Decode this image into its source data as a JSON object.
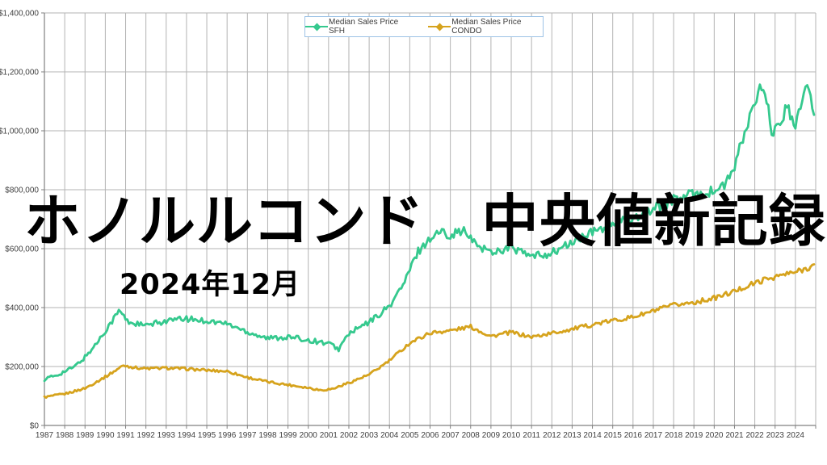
{
  "overlay": {
    "headline": "ホノルルコンド　中央値新記録",
    "subtitle": "2024年12月"
  },
  "legend": {
    "entries": [
      {
        "label": "Median Sales Price SFH",
        "color": "#35c98e"
      },
      {
        "label": "Median Sales Price CONDO",
        "color": "#d6a31d"
      }
    ]
  },
  "colors": {
    "sfh_line": "#35c98e",
    "condo_line": "#d6a31d",
    "gridline": "#b3b3b3",
    "axis": "#808080",
    "tick_text": "#404040",
    "legend_border": "#9dc3e6",
    "overlay_text": "#000000"
  },
  "chart_data": {
    "type": "line",
    "title": "",
    "xlabel": "",
    "ylabel": "",
    "grid": true,
    "legend_position": "top-center",
    "x_axis": {
      "range": [
        1987,
        2025
      ],
      "labels": [
        "1987",
        "1988",
        "1989",
        "1990",
        "1991",
        "1992",
        "1993",
        "1994",
        "1995",
        "1996",
        "1997",
        "1998",
        "1999",
        "2000",
        "2001",
        "2002",
        "2003",
        "2004",
        "2005",
        "2006",
        "2007",
        "2008",
        "2009",
        "2010",
        "2011",
        "2012",
        "2013",
        "2014",
        "2015",
        "2016",
        "2017",
        "2018",
        "2019",
        "2020",
        "2021",
        "2022",
        "2023",
        "2024"
      ]
    },
    "y_axis": {
      "range": [
        0,
        1400000
      ],
      "step": 200000,
      "tick_labels": [
        "$0",
        "$200,000",
        "$400,000",
        "$600,000",
        "$800,000",
        "$1,000,000",
        "$1,200,000",
        "$1,400,000"
      ]
    },
    "series": [
      {
        "name": "Median Sales Price SFH",
        "color": "#35c98e",
        "unit": "USD",
        "sampling": "monthly (values below are key anchor points read from plot)",
        "points": [
          [
            1987.0,
            157000
          ],
          [
            1987.5,
            168000
          ],
          [
            1988.0,
            183000
          ],
          [
            1988.5,
            200000
          ],
          [
            1989.0,
            232000
          ],
          [
            1989.5,
            272000
          ],
          [
            1990.0,
            322000
          ],
          [
            1990.7,
            391000
          ],
          [
            1991.1,
            352000
          ],
          [
            1992.0,
            338000
          ],
          [
            1993.0,
            355000
          ],
          [
            1994.0,
            362000
          ],
          [
            1995.0,
            355000
          ],
          [
            1996.0,
            345000
          ],
          [
            1997.0,
            318000
          ],
          [
            1998.0,
            296000
          ],
          [
            1999.0,
            300000
          ],
          [
            2000.0,
            290000
          ],
          [
            2001.0,
            278000
          ],
          [
            2001.5,
            259000
          ],
          [
            2002.0,
            312000
          ],
          [
            2003.0,
            350000
          ],
          [
            2004.0,
            405000
          ],
          [
            2004.7,
            480000
          ],
          [
            2005.4,
            590000
          ],
          [
            2006.0,
            635000
          ],
          [
            2006.5,
            658000
          ],
          [
            2007.0,
            648000
          ],
          [
            2007.6,
            663000
          ],
          [
            2008.2,
            618000
          ],
          [
            2009.0,
            588000
          ],
          [
            2010.0,
            604000
          ],
          [
            2011.0,
            572000
          ],
          [
            2012.0,
            585000
          ],
          [
            2013.0,
            620000
          ],
          [
            2014.0,
            655000
          ],
          [
            2015.0,
            685000
          ],
          [
            2016.0,
            705000
          ],
          [
            2017.0,
            735000
          ],
          [
            2018.0,
            765000
          ],
          [
            2019.0,
            785000
          ],
          [
            2020.0,
            795000
          ],
          [
            2020.6,
            820000
          ],
          [
            2021.0,
            880000
          ],
          [
            2021.5,
            990000
          ],
          [
            2021.9,
            1075000
          ],
          [
            2022.3,
            1145000
          ],
          [
            2022.6,
            1090000
          ],
          [
            2022.9,
            985000
          ],
          [
            2023.2,
            1010000
          ],
          [
            2023.6,
            1095000
          ],
          [
            2024.0,
            1000000
          ],
          [
            2024.3,
            1110000
          ],
          [
            2024.6,
            1135000
          ],
          [
            2024.96,
            1060000
          ]
        ]
      },
      {
        "name": "Median Sales Price CONDO",
        "color": "#d6a31d",
        "unit": "USD",
        "sampling": "monthly (values below are key anchor points read from plot)",
        "points": [
          [
            1987.0,
            96000
          ],
          [
            1988.0,
            107000
          ],
          [
            1989.0,
            126000
          ],
          [
            1990.0,
            165000
          ],
          [
            1990.9,
            204000
          ],
          [
            1991.5,
            196000
          ],
          [
            1992.0,
            193000
          ],
          [
            1993.0,
            195000
          ],
          [
            1994.0,
            192000
          ],
          [
            1995.0,
            187000
          ],
          [
            1996.0,
            184000
          ],
          [
            1997.0,
            163000
          ],
          [
            1998.0,
            148000
          ],
          [
            1999.0,
            138000
          ],
          [
            2000.0,
            128000
          ],
          [
            2000.6,
            120000
          ],
          [
            2001.2,
            124000
          ],
          [
            2002.0,
            145000
          ],
          [
            2003.0,
            172000
          ],
          [
            2004.0,
            220000
          ],
          [
            2005.0,
            280000
          ],
          [
            2006.0,
            314000
          ],
          [
            2007.0,
            322000
          ],
          [
            2008.0,
            335000
          ],
          [
            2009.0,
            303000
          ],
          [
            2010.0,
            316000
          ],
          [
            2011.0,
            300000
          ],
          [
            2012.0,
            313000
          ],
          [
            2013.0,
            327000
          ],
          [
            2014.0,
            342000
          ],
          [
            2015.0,
            356000
          ],
          [
            2016.0,
            368000
          ],
          [
            2017.0,
            388000
          ],
          [
            2018.0,
            408000
          ],
          [
            2019.0,
            418000
          ],
          [
            2020.0,
            432000
          ],
          [
            2021.0,
            455000
          ],
          [
            2021.8,
            478000
          ],
          [
            2022.5,
            495000
          ],
          [
            2023.0,
            505000
          ],
          [
            2024.0,
            520000
          ],
          [
            2024.5,
            532000
          ],
          [
            2024.96,
            545000
          ]
        ]
      }
    ]
  }
}
